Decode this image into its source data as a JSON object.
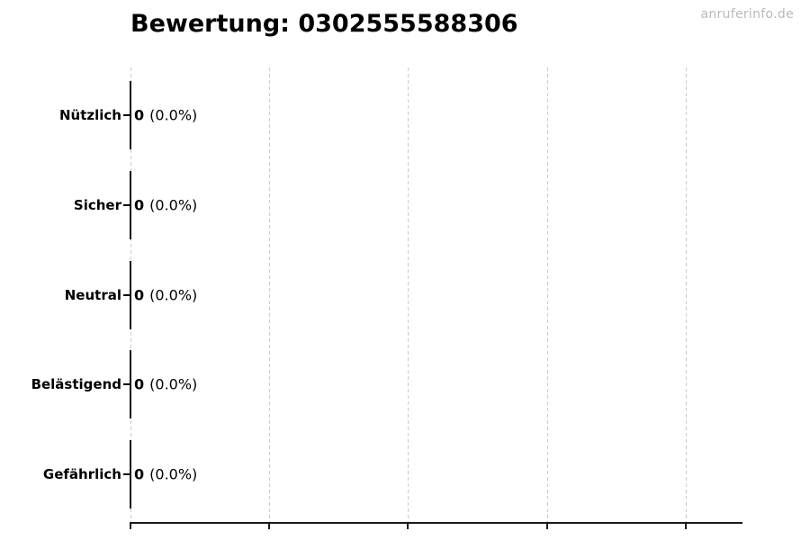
{
  "watermark": "anruferinfo.de",
  "chart_data": {
    "type": "bar",
    "orientation": "horizontal",
    "title": "Bewertung: 0302555588306",
    "categories": [
      "Nützlich",
      "Sicher",
      "Neutral",
      "Belästigend",
      "Gefährlich"
    ],
    "values": [
      0,
      0,
      0,
      0,
      0
    ],
    "percentages": [
      0.0,
      0.0,
      0.0,
      0.0,
      0.0
    ],
    "bar_annotations": [
      "0 (0.0%)",
      "0 (0.0%)",
      "0 (0.0%)",
      "0 (0.0%)",
      "0 (0.0%)"
    ],
    "rows": [
      {
        "category": "Nützlich",
        "count": "0",
        "percent": "(0.0%)"
      },
      {
        "category": "Sicher",
        "count": "0",
        "percent": "(0.0%)"
      },
      {
        "category": "Neutral",
        "count": "0",
        "percent": "(0.0%)"
      },
      {
        "category": "Belästigend",
        "count": "0",
        "percent": "(0.0%)"
      },
      {
        "category": "Gefährlich",
        "count": "0",
        "percent": "(0.0%)"
      }
    ],
    "xlabel": "",
    "ylabel": "",
    "xlim": [
      0,
      0.88
    ],
    "x_gridline_values": [
      0,
      0.2,
      0.4,
      0.6,
      0.8
    ],
    "x_tick_labels": [],
    "grid": "vertical-dashed",
    "legend": "none",
    "colors": {
      "text": "#000000",
      "bar_edge": "#0d0d0d",
      "axis": "#1a1a1a",
      "gridline": "#cccccc",
      "watermark": "#b9b9b9",
      "background": "#ffffff"
    }
  }
}
